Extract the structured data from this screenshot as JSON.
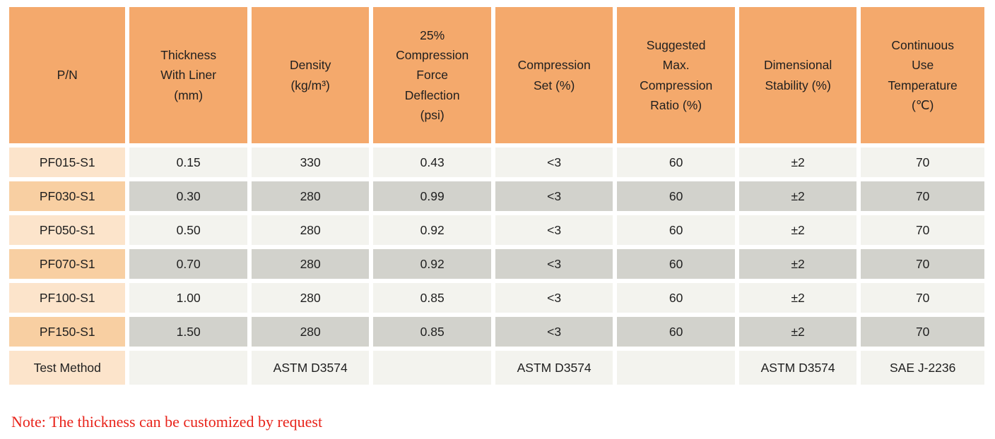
{
  "colors": {
    "header_bg": "#f4a96c",
    "pn_cell_light": "#fce4cb",
    "pn_cell_dark": "#f8cfa2",
    "row_light": "#f3f3ee",
    "row_dark": "#d2d2cc",
    "note_text": "#e8231a",
    "table_text": "#1f1f1f"
  },
  "table": {
    "headers": [
      "P/N",
      "Thickness\nWith Liner\n(mm)",
      "Density\n(kg/m³)",
      "25%\nCompression\nForce\nDeflection\n(psi)",
      "Compression\nSet (%)",
      "Suggested\nMax.\nCompression\nRatio (%)",
      "Dimensional\nStability (%)",
      "Continuous\nUse\nTemperature\n(℃)"
    ],
    "rows": [
      {
        "pn": "PF015-S1",
        "values": [
          "0.15",
          "330",
          "0.43",
          "<3",
          "60",
          "±2",
          "70"
        ]
      },
      {
        "pn": "PF030-S1",
        "values": [
          "0.30",
          "280",
          "0.99",
          "<3",
          "60",
          "±2",
          "70"
        ]
      },
      {
        "pn": "PF050-S1",
        "values": [
          "0.50",
          "280",
          "0.92",
          "<3",
          "60",
          "±2",
          "70"
        ]
      },
      {
        "pn": "PF070-S1",
        "values": [
          "0.70",
          "280",
          "0.92",
          "<3",
          "60",
          "±2",
          "70"
        ]
      },
      {
        "pn": "PF100-S1",
        "values": [
          "1.00",
          "280",
          "0.85",
          "<3",
          "60",
          "±2",
          "70"
        ]
      },
      {
        "pn": "PF150-S1",
        "values": [
          "1.50",
          "280",
          "0.85",
          "<3",
          "60",
          "±2",
          "70"
        ]
      },
      {
        "pn": "Test Method",
        "values": [
          "",
          "ASTM D3574",
          "",
          "ASTM D3574",
          "",
          "ASTM D3574",
          "SAE J-2236"
        ]
      }
    ]
  },
  "note": {
    "text": "Note: The thickness can be customized by request"
  }
}
